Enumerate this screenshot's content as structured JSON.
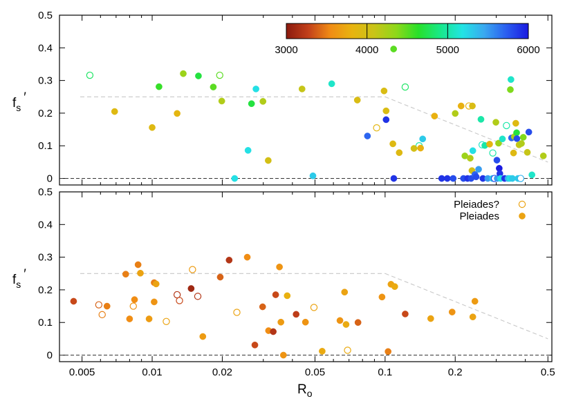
{
  "chart_data": [
    {
      "type": "scatter",
      "panel": "top",
      "xlabel": "R",
      "xlabel_sub": "o",
      "ylabel": "f",
      "ylabel_sub": "s",
      "ylabel_prime": "′",
      "xscale": "log",
      "xlim": [
        0.004,
        0.52
      ],
      "ylim": [
        -0.02,
        0.5
      ],
      "yticks": [
        "0",
        "0.1",
        "0.2",
        "0.3",
        "0.4",
        "0.5"
      ],
      "colorbar": {
        "min": 3000,
        "max": 6000,
        "ticks": [
          "3000",
          "4000",
          "5000",
          "6000"
        ],
        "colors": [
          "#8b1a0e",
          "#c2401a",
          "#f08c14",
          "#e8b410",
          "#c8c418",
          "#8ed81a",
          "#28e02a",
          "#18e88a",
          "#22e4e4",
          "#3aa8f0",
          "#2a5ef0",
          "#1a1ae0"
        ]
      },
      "guide_line": {
        "x": [
          0.004,
          0.1,
          0.5
        ],
        "y": [
          0.25,
          0.25,
          0.05
        ]
      },
      "zero_line": 0,
      "points": [
        {
          "x": 0.0054,
          "y": 0.316,
          "t": 4800,
          "open": true
        },
        {
          "x": 0.0069,
          "y": 0.205,
          "t": 3900,
          "open": false
        },
        {
          "x": 0.01,
          "y": 0.156,
          "t": 3900,
          "open": false
        },
        {
          "x": 0.0107,
          "y": 0.281,
          "t": 4600,
          "open": false
        },
        {
          "x": 0.0128,
          "y": 0.199,
          "t": 3850,
          "open": false
        },
        {
          "x": 0.0136,
          "y": 0.321,
          "t": 4300,
          "open": false
        },
        {
          "x": 0.0158,
          "y": 0.314,
          "t": 4700,
          "open": false
        },
        {
          "x": 0.0183,
          "y": 0.28,
          "t": 4500,
          "open": false
        },
        {
          "x": 0.0195,
          "y": 0.316,
          "t": 4500,
          "open": true
        },
        {
          "x": 0.0199,
          "y": 0.237,
          "t": 4200,
          "open": false
        },
        {
          "x": 0.0226,
          "y": 0.0,
          "t": 5200,
          "open": false
        },
        {
          "x": 0.0258,
          "y": 0.086,
          "t": 5200,
          "open": false
        },
        {
          "x": 0.0267,
          "y": 0.229,
          "t": 4700,
          "open": false
        },
        {
          "x": 0.0279,
          "y": 0.274,
          "t": 5200,
          "open": false
        },
        {
          "x": 0.0299,
          "y": 0.236,
          "t": 4200,
          "open": false
        },
        {
          "x": 0.0315,
          "y": 0.055,
          "t": 4000,
          "open": false
        },
        {
          "x": 0.044,
          "y": 0.274,
          "t": 4100,
          "open": false
        },
        {
          "x": 0.049,
          "y": 0.008,
          "t": 5300,
          "open": false
        },
        {
          "x": 0.059,
          "y": 0.29,
          "t": 5100,
          "open": false
        },
        {
          "x": 0.076,
          "y": 0.24,
          "t": 3950,
          "open": false
        },
        {
          "x": 0.084,
          "y": 0.13,
          "t": 5700,
          "open": false
        },
        {
          "x": 0.092,
          "y": 0.155,
          "t": 3850,
          "open": true
        },
        {
          "x": 0.099,
          "y": 0.268,
          "t": 3950,
          "open": false
        },
        {
          "x": 0.101,
          "y": 0.207,
          "t": 3950,
          "open": false
        },
        {
          "x": 0.101,
          "y": 0.18,
          "t": 5900,
          "open": false
        },
        {
          "x": 0.108,
          "y": 0.106,
          "t": 3900,
          "open": false
        },
        {
          "x": 0.109,
          "y": 0.0,
          "t": 5900,
          "open": false
        },
        {
          "x": 0.115,
          "y": 0.079,
          "t": 3900,
          "open": false
        },
        {
          "x": 0.122,
          "y": 0.28,
          "t": 4800,
          "open": true
        },
        {
          "x": 0.14,
          "y": 0.1,
          "t": 5000,
          "open": true
        },
        {
          "x": 0.145,
          "y": 0.121,
          "t": 5300,
          "open": false
        },
        {
          "x": 0.133,
          "y": 0.092,
          "t": 4000,
          "open": false
        },
        {
          "x": 0.142,
          "y": 0.093,
          "t": 3800,
          "open": false
        },
        {
          "x": 0.163,
          "y": 0.191,
          "t": 3800,
          "open": false
        },
        {
          "x": 0.175,
          "y": 0.0,
          "t": 5900,
          "open": false
        },
        {
          "x": 0.185,
          "y": 0.0,
          "t": 5900,
          "open": false
        },
        {
          "x": 0.196,
          "y": 0.0,
          "t": 5800,
          "open": false
        },
        {
          "x": 0.2,
          "y": 0.199,
          "t": 4200,
          "open": false
        },
        {
          "x": 0.212,
          "y": 0.222,
          "t": 3800,
          "open": false
        },
        {
          "x": 0.217,
          "y": 0.0,
          "t": 5800,
          "open": false
        },
        {
          "x": 0.22,
          "y": 0.069,
          "t": 4300,
          "open": false
        },
        {
          "x": 0.226,
          "y": 0.0,
          "t": 5900,
          "open": false
        },
        {
          "x": 0.229,
          "y": 0.222,
          "t": 3800,
          "open": true
        },
        {
          "x": 0.232,
          "y": 0.062,
          "t": 4200,
          "open": false
        },
        {
          "x": 0.234,
          "y": 0.0,
          "t": 5800,
          "open": false
        },
        {
          "x": 0.237,
          "y": 0.222,
          "t": 3950,
          "open": false
        },
        {
          "x": 0.238,
          "y": 0.085,
          "t": 5200,
          "open": false
        },
        {
          "x": 0.236,
          "y": 0.024,
          "t": 4000,
          "open": false
        },
        {
          "x": 0.243,
          "y": 0.012,
          "t": 5700,
          "open": false
        },
        {
          "x": 0.246,
          "y": 0.005,
          "t": 5800,
          "open": false
        },
        {
          "x": 0.252,
          "y": 0.028,
          "t": 5500,
          "open": false
        },
        {
          "x": 0.258,
          "y": 0.181,
          "t": 5000,
          "open": false
        },
        {
          "x": 0.261,
          "y": 0.103,
          "t": 5100,
          "open": true
        },
        {
          "x": 0.263,
          "y": 0.0,
          "t": 5900,
          "open": false
        },
        {
          "x": 0.268,
          "y": 0.101,
          "t": 5000,
          "open": false
        },
        {
          "x": 0.276,
          "y": 0.0,
          "t": 5500,
          "open": false
        },
        {
          "x": 0.281,
          "y": 0.105,
          "t": 3850,
          "open": false
        },
        {
          "x": 0.289,
          "y": 0.0,
          "t": 5300,
          "open": false
        },
        {
          "x": 0.29,
          "y": 0.078,
          "t": 5000,
          "open": true
        },
        {
          "x": 0.295,
          "y": 0.0,
          "t": 5800,
          "open": true
        },
        {
          "x": 0.299,
          "y": 0.172,
          "t": 4200,
          "open": false
        },
        {
          "x": 0.302,
          "y": 0.056,
          "t": 5800,
          "open": false
        },
        {
          "x": 0.303,
          "y": 0.0,
          "t": 5500,
          "open": false
        },
        {
          "x": 0.307,
          "y": 0.108,
          "t": 4300,
          "open": false
        },
        {
          "x": 0.309,
          "y": 0.031,
          "t": 6000,
          "open": false
        },
        {
          "x": 0.311,
          "y": 0.015,
          "t": 5900,
          "open": false
        },
        {
          "x": 0.313,
          "y": 0.0,
          "t": 5200,
          "open": false
        },
        {
          "x": 0.319,
          "y": 0.121,
          "t": 5100,
          "open": false
        },
        {
          "x": 0.326,
          "y": 0.0,
          "t": 5900,
          "open": false
        },
        {
          "x": 0.332,
          "y": 0.162,
          "t": 5000,
          "open": true
        },
        {
          "x": 0.337,
          "y": 0.0,
          "t": 5400,
          "open": false
        },
        {
          "x": 0.343,
          "y": 0.0,
          "t": 5200,
          "open": false
        },
        {
          "x": 0.345,
          "y": 0.272,
          "t": 4400,
          "open": false
        },
        {
          "x": 0.347,
          "y": 0.303,
          "t": 5100,
          "open": false
        },
        {
          "x": 0.349,
          "y": 0.124,
          "t": 5700,
          "open": false
        },
        {
          "x": 0.352,
          "y": 0.0,
          "t": 5300,
          "open": false
        },
        {
          "x": 0.356,
          "y": 0.078,
          "t": 3900,
          "open": false
        },
        {
          "x": 0.359,
          "y": 0.128,
          "t": 4200,
          "open": false
        },
        {
          "x": 0.364,
          "y": 0.169,
          "t": 3900,
          "open": false
        },
        {
          "x": 0.367,
          "y": 0.14,
          "t": 4700,
          "open": false
        },
        {
          "x": 0.368,
          "y": 0.122,
          "t": 5800,
          "open": false
        },
        {
          "x": 0.372,
          "y": 0.0,
          "t": 5300,
          "open": false
        },
        {
          "x": 0.376,
          "y": 0.103,
          "t": 4100,
          "open": false
        },
        {
          "x": 0.382,
          "y": 0.0,
          "t": 5400,
          "open": true
        },
        {
          "x": 0.385,
          "y": 0.107,
          "t": 4200,
          "open": false
        },
        {
          "x": 0.392,
          "y": 0.126,
          "t": 4400,
          "open": false
        },
        {
          "x": 0.408,
          "y": 0.08,
          "t": 4100,
          "open": false
        },
        {
          "x": 0.414,
          "y": 0.142,
          "t": 5800,
          "open": false
        },
        {
          "x": 0.427,
          "y": 0.011,
          "t": 5100,
          "open": false
        },
        {
          "x": 0.478,
          "y": 0.069,
          "t": 4200,
          "open": false
        }
      ],
      "single_point_legend": {
        "x_value": 4330,
        "color_t": 4500
      }
    },
    {
      "type": "scatter",
      "panel": "bottom",
      "xlabel": "R",
      "xlabel_sub": "o",
      "ylabel": "f",
      "ylabel_sub": "s",
      "ylabel_prime": "′",
      "xscale": "log",
      "xlim": [
        0.004,
        0.52
      ],
      "ylim": [
        -0.02,
        0.5
      ],
      "xticks": [
        "0.005",
        "0.01",
        "0.02",
        "0.05",
        "0.1",
        "0.2",
        "0.5"
      ],
      "yticks": [
        "0",
        "0.1",
        "0.2",
        "0.3",
        "0.4",
        "0.5"
      ],
      "guide_line": {
        "x": [
          0.004,
          0.1,
          0.5
        ],
        "y": [
          0.25,
          0.25,
          0.05
        ]
      },
      "zero_line": 0,
      "legend": [
        {
          "name": "Pleiades?",
          "open": true
        },
        {
          "name": "Pleiades",
          "open": false
        }
      ],
      "points": [
        {
          "x": 0.0046,
          "y": 0.165,
          "t": 3300,
          "open": false
        },
        {
          "x": 0.0059,
          "y": 0.154,
          "t": 3400,
          "open": true
        },
        {
          "x": 0.0061,
          "y": 0.124,
          "t": 3500,
          "open": true
        },
        {
          "x": 0.0064,
          "y": 0.15,
          "t": 3500,
          "open": false
        },
        {
          "x": 0.0077,
          "y": 0.248,
          "t": 3500,
          "open": false
        },
        {
          "x": 0.008,
          "y": 0.111,
          "t": 3550,
          "open": false
        },
        {
          "x": 0.0083,
          "y": 0.15,
          "t": 3600,
          "open": true
        },
        {
          "x": 0.0084,
          "y": 0.17,
          "t": 3550,
          "open": false
        },
        {
          "x": 0.0087,
          "y": 0.277,
          "t": 3500,
          "open": false
        },
        {
          "x": 0.0089,
          "y": 0.251,
          "t": 3700,
          "open": false
        },
        {
          "x": 0.0097,
          "y": 0.111,
          "t": 3650,
          "open": false
        },
        {
          "x": 0.0102,
          "y": 0.222,
          "t": 3500,
          "open": false
        },
        {
          "x": 0.0104,
          "y": 0.218,
          "t": 3700,
          "open": false
        },
        {
          "x": 0.0102,
          "y": 0.163,
          "t": 3600,
          "open": false
        },
        {
          "x": 0.0115,
          "y": 0.103,
          "t": 3700,
          "open": true
        },
        {
          "x": 0.0128,
          "y": 0.185,
          "t": 3200,
          "open": true
        },
        {
          "x": 0.0131,
          "y": 0.167,
          "t": 3300,
          "open": true
        },
        {
          "x": 0.0147,
          "y": 0.204,
          "t": 3100,
          "open": false
        },
        {
          "x": 0.0149,
          "y": 0.262,
          "t": 3650,
          "open": true
        },
        {
          "x": 0.0157,
          "y": 0.18,
          "t": 3200,
          "open": true
        },
        {
          "x": 0.0165,
          "y": 0.057,
          "t": 3650,
          "open": false
        },
        {
          "x": 0.0196,
          "y": 0.239,
          "t": 3400,
          "open": false
        },
        {
          "x": 0.0214,
          "y": 0.291,
          "t": 3200,
          "open": false
        },
        {
          "x": 0.0231,
          "y": 0.131,
          "t": 3700,
          "open": true
        },
        {
          "x": 0.0256,
          "y": 0.3,
          "t": 3550,
          "open": false
        },
        {
          "x": 0.0276,
          "y": 0.031,
          "t": 3300,
          "open": false
        },
        {
          "x": 0.0298,
          "y": 0.148,
          "t": 3400,
          "open": false
        },
        {
          "x": 0.0316,
          "y": 0.075,
          "t": 3550,
          "open": false
        },
        {
          "x": 0.0331,
          "y": 0.072,
          "t": 3200,
          "open": false
        },
        {
          "x": 0.0339,
          "y": 0.185,
          "t": 3300,
          "open": false
        },
        {
          "x": 0.0352,
          "y": 0.27,
          "t": 3600,
          "open": false
        },
        {
          "x": 0.0357,
          "y": 0.101,
          "t": 3650,
          "open": false
        },
        {
          "x": 0.0366,
          "y": 0.0,
          "t": 3600,
          "open": false
        },
        {
          "x": 0.038,
          "y": 0.182,
          "t": 3800,
          "open": false
        },
        {
          "x": 0.0415,
          "y": 0.125,
          "t": 3250,
          "open": false
        },
        {
          "x": 0.0455,
          "y": 0.101,
          "t": 3600,
          "open": false
        },
        {
          "x": 0.0495,
          "y": 0.146,
          "t": 3700,
          "open": true
        },
        {
          "x": 0.0537,
          "y": 0.012,
          "t": 3750,
          "open": false
        },
        {
          "x": 0.064,
          "y": 0.106,
          "t": 3600,
          "open": false
        },
        {
          "x": 0.067,
          "y": 0.193,
          "t": 3700,
          "open": false
        },
        {
          "x": 0.068,
          "y": 0.094,
          "t": 3750,
          "open": false
        },
        {
          "x": 0.069,
          "y": 0.015,
          "t": 3750,
          "open": true
        },
        {
          "x": 0.0765,
          "y": 0.1,
          "t": 3400,
          "open": false
        },
        {
          "x": 0.097,
          "y": 0.178,
          "t": 3600,
          "open": false
        },
        {
          "x": 0.103,
          "y": 0.011,
          "t": 3500,
          "open": false
        },
        {
          "x": 0.106,
          "y": 0.217,
          "t": 3700,
          "open": false
        },
        {
          "x": 0.11,
          "y": 0.21,
          "t": 3750,
          "open": false
        },
        {
          "x": 0.122,
          "y": 0.126,
          "t": 3300,
          "open": false
        },
        {
          "x": 0.157,
          "y": 0.112,
          "t": 3700,
          "open": false
        },
        {
          "x": 0.194,
          "y": 0.132,
          "t": 3600,
          "open": false
        },
        {
          "x": 0.238,
          "y": 0.117,
          "t": 3700,
          "open": false
        },
        {
          "x": 0.243,
          "y": 0.165,
          "t": 3650,
          "open": false
        }
      ]
    }
  ]
}
